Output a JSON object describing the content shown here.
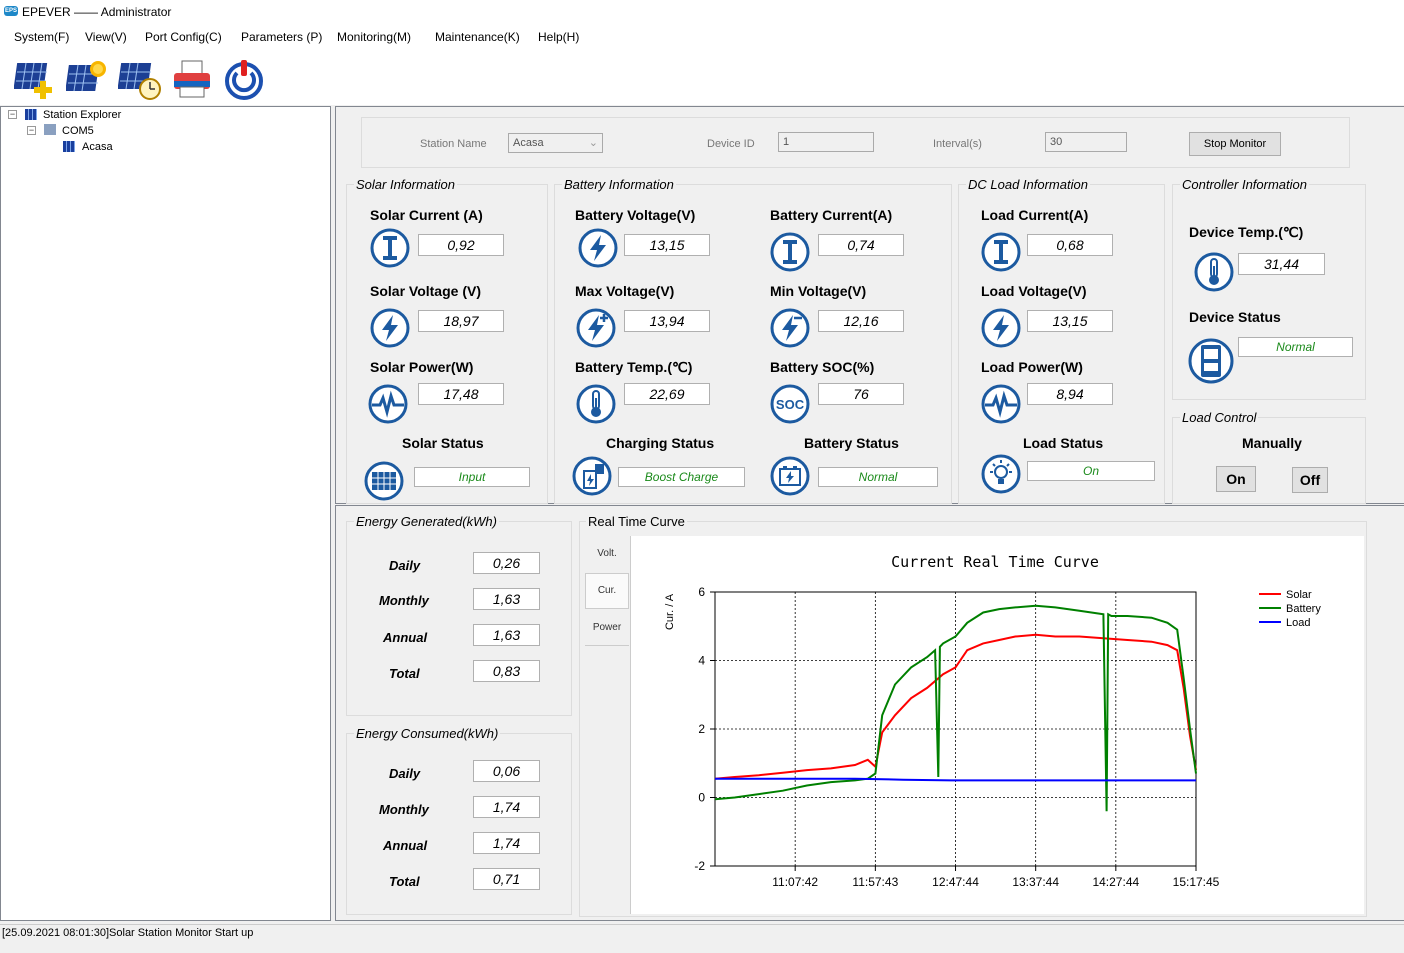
{
  "window": {
    "title": "EPEVER —— Administrator",
    "icon_name": "epever-logo-icon",
    "icon_text": "EPS"
  },
  "menu": [
    "System(F)",
    "View(V)",
    "Port Config(C)",
    "Parameters (P)",
    "Monitoring(M)",
    "Maintenance(K)",
    "Help(H)"
  ],
  "toolbar": [
    "add-station-icon",
    "station-sun-icon",
    "station-clock-icon",
    "printer-icon",
    "power-icon"
  ],
  "explorer": {
    "root": "Station Explorer",
    "port": "COM5",
    "station": "Acasa"
  },
  "station_bar": {
    "station_name_label": "Station Name",
    "station_name_value": "Acasa",
    "device_id_label": "Device ID",
    "device_id_value": "1",
    "interval_label": "Interval(s)",
    "interval_value": "30",
    "stop_button": "Stop Monitor"
  },
  "solar": {
    "title": "Solar Information",
    "current_label": "Solar Current (A)",
    "current": "0,92",
    "voltage_label": "Solar Voltage (V)",
    "voltage": "18,97",
    "power_label": "Solar Power(W)",
    "power": "17,48",
    "status_label": "Solar Status",
    "status": "Input"
  },
  "battery": {
    "title": "Battery Information",
    "voltage_label": "Battery Voltage(V)",
    "voltage": "13,15",
    "current_label": "Battery Current(A)",
    "current": "0,74",
    "max_voltage_label": "Max Voltage(V)",
    "max_voltage": "13,94",
    "min_voltage_label": "Min Voltage(V)",
    "min_voltage": "12,16",
    "temp_label": "Battery Temp.(℃)",
    "temp": "22,69",
    "soc_label": "Battery SOC(%)",
    "soc": "76",
    "charging_status_label": "Charging Status",
    "charging_status": "Boost Charge",
    "battery_status_label": "Battery Status",
    "battery_status": "Normal",
    "soc_icon_text": "SOC"
  },
  "load": {
    "title": "DC Load Information",
    "current_label": "Load Current(A)",
    "current": "0,68",
    "voltage_label": "Load Voltage(V)",
    "voltage": "13,15",
    "power_label": "Load Power(W)",
    "power": "8,94",
    "status_label": "Load Status",
    "status": "On"
  },
  "controller": {
    "title": "Controller Information",
    "temp_label": "Device Temp.(℃)",
    "temp": "31,44",
    "status_label": "Device Status",
    "status": "Normal"
  },
  "load_control": {
    "title": "Load Control",
    "mode": "Manually",
    "on_button": "On",
    "off_button": "Off"
  },
  "energy_generated": {
    "title": "Energy Generated(kWh)",
    "rows": [
      {
        "label": "Daily",
        "value": "0,26"
      },
      {
        "label": "Monthly",
        "value": "1,63"
      },
      {
        "label": "Annual",
        "value": "1,63"
      },
      {
        "label": "Total",
        "value": "0,83"
      }
    ]
  },
  "energy_consumed": {
    "title": "Energy Consumed(kWh)",
    "rows": [
      {
        "label": "Daily",
        "value": "0,06"
      },
      {
        "label": "Monthly",
        "value": "1,74"
      },
      {
        "label": "Annual",
        "value": "1,74"
      },
      {
        "label": "Total",
        "value": "0,71"
      }
    ]
  },
  "curve": {
    "group_title": "Real Time Curve",
    "tabs": [
      "Volt.",
      "Cur.",
      "Power"
    ],
    "selected_tab": "Cur."
  },
  "chart_data": {
    "type": "line",
    "title": "Current Real Time Curve",
    "ylabel": "Cur. / A",
    "xlabel": "",
    "ylim": [
      -2,
      6
    ],
    "yticks": [
      -2,
      0,
      2,
      4,
      6
    ],
    "xlim": [
      "10:17:41",
      "15:17:45"
    ],
    "xticks": [
      "11:07:42",
      "11:57:43",
      "12:47:44",
      "13:37:44",
      "14:27:44",
      "15:17:45"
    ],
    "grid": true,
    "legend_position": "top-right",
    "series": [
      {
        "name": "Solar",
        "color": "#ff0000",
        "x": [
          "10:17:41",
          "10:30:00",
          "10:45:00",
          "11:00:00",
          "11:15:00",
          "11:30:00",
          "11:45:00",
          "11:53:00",
          "11:57:43",
          "12:02:00",
          "12:10:00",
          "12:20:00",
          "12:30:00",
          "12:40:00",
          "12:47:44",
          "12:55:00",
          "13:05:00",
          "13:15:00",
          "13:25:00",
          "13:37:44",
          "13:50:00",
          "14:05:00",
          "14:20:00",
          "14:35:00",
          "14:50:00",
          "15:00:00",
          "15:06:00",
          "15:10:00",
          "15:14:00",
          "15:17:45"
        ],
        "values": [
          0.55,
          0.6,
          0.65,
          0.72,
          0.8,
          0.85,
          0.95,
          1.1,
          0.9,
          1.9,
          2.4,
          2.9,
          3.2,
          3.6,
          3.8,
          4.3,
          4.5,
          4.6,
          4.7,
          4.75,
          4.7,
          4.7,
          4.65,
          4.6,
          4.55,
          4.45,
          4.3,
          3.2,
          1.8,
          0.8
        ]
      },
      {
        "name": "Battery",
        "color": "#008000",
        "x": [
          "10:17:41",
          "10:30:00",
          "10:45:00",
          "11:00:00",
          "11:15:00",
          "11:30:00",
          "11:45:00",
          "11:53:00",
          "11:57:43",
          "12:02:00",
          "12:10:00",
          "12:20:00",
          "12:30:00",
          "12:35:00",
          "12:37:00",
          "12:38:00",
          "12:40:00",
          "12:47:44",
          "12:55:00",
          "13:05:00",
          "13:15:00",
          "13:25:00",
          "13:37:44",
          "13:50:00",
          "14:05:00",
          "14:20:00",
          "14:22:00",
          "14:23:00",
          "14:25:00",
          "14:35:00",
          "14:50:00",
          "15:00:00",
          "15:06:00",
          "15:10:00",
          "15:14:00",
          "15:17:45"
        ],
        "values": [
          -0.05,
          0.0,
          0.1,
          0.2,
          0.35,
          0.45,
          0.5,
          0.55,
          0.7,
          2.4,
          3.3,
          3.8,
          4.1,
          4.3,
          0.6,
          4.4,
          4.5,
          4.7,
          5.1,
          5.4,
          5.5,
          5.55,
          5.6,
          5.55,
          5.45,
          5.35,
          -0.4,
          5.35,
          5.3,
          5.3,
          5.25,
          5.1,
          4.9,
          3.5,
          2.0,
          0.7
        ]
      },
      {
        "name": "Load",
        "color": "#0000ff",
        "x": [
          "10:17:41",
          "10:45:00",
          "11:15:00",
          "11:45:00",
          "12:15:00",
          "12:45:00",
          "13:15:00",
          "13:45:00",
          "14:15:00",
          "14:45:00",
          "15:17:45"
        ],
        "values": [
          0.55,
          0.55,
          0.55,
          0.55,
          0.52,
          0.5,
          0.5,
          0.5,
          0.5,
          0.5,
          0.5
        ]
      }
    ]
  },
  "status_bar": "[25.09.2021 08:01:30]Solar Station Monitor Start up"
}
